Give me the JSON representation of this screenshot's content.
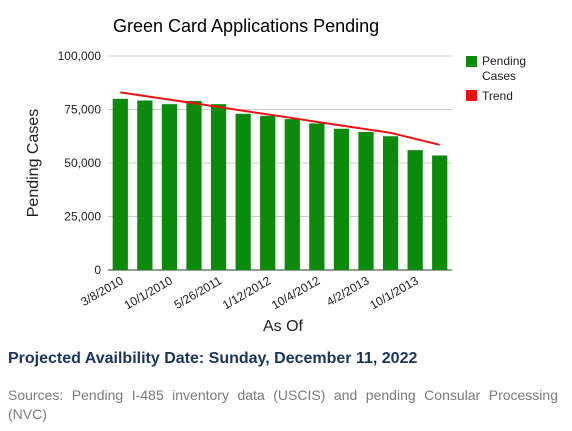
{
  "chart_data": {
    "type": "bar",
    "title": "Green Card Applications Pending",
    "xlabel": "As Of",
    "ylabel": "Pending Cases",
    "ylim": [
      0,
      100000
    ],
    "yticks": [
      0,
      25000,
      50000,
      75000,
      100000
    ],
    "ytick_labels": [
      "0",
      "25,000",
      "50,000",
      "75,000",
      "100,000"
    ],
    "x_tick_labels": [
      "3/8/2010",
      "10/1/2010",
      "5/26/2011",
      "1/12/2012",
      "10/4/2012",
      "4/2/2013",
      "10/1/2013"
    ],
    "legend_position": "right",
    "grid": true,
    "series": [
      {
        "name": "Pending Cases",
        "type": "bar",
        "color": "#0b8a0b",
        "values": [
          80000,
          79200,
          77500,
          79000,
          77500,
          73000,
          72000,
          70500,
          68500,
          66000,
          64500,
          62500,
          56000,
          53500
        ]
      },
      {
        "name": "Trend",
        "type": "line",
        "color": "#ee1111",
        "values": [
          83000,
          81300,
          79600,
          77900,
          76200,
          74400,
          72700,
          71000,
          69200,
          67500,
          65800,
          64100,
          61300,
          58500
        ]
      }
    ]
  },
  "footer": {
    "projected": "Projected Availbility Date: Sunday, December 11, 2022",
    "sources": "Sources: Pending I-485 inventory data (USCIS) and pending Consular Processing (NVC)"
  }
}
